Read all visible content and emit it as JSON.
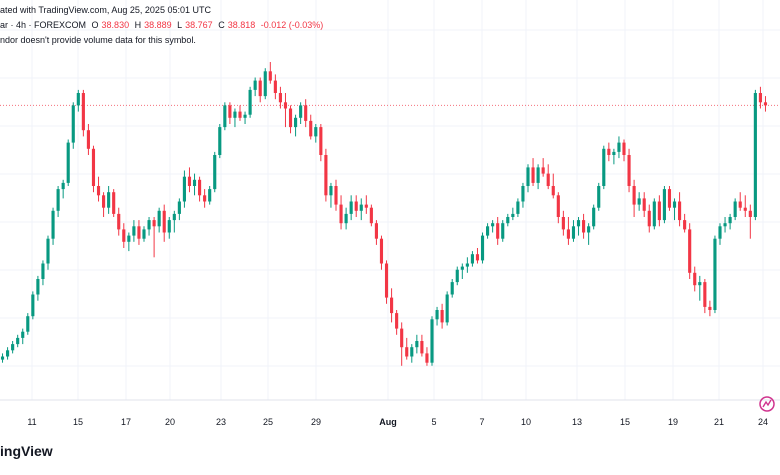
{
  "header": {
    "credit": "ated with TradingView.com, Aug 25, 2025 05:01 UTC",
    "symbol_line": "ar · 4h · FOREXCOM",
    "open_label": "O",
    "open": "38.830",
    "high_label": "H",
    "high": "38.889",
    "low_label": "L",
    "low": "38.767",
    "close_label": "C",
    "close": "38.818",
    "change": "-0.012 (-0.03%)"
  },
  "note": "ndor doesn't provide volume data for this symbol.",
  "footer_brand": "ingView",
  "colors": {
    "up": "#089981",
    "down": "#f23645",
    "grid": "#f0f3fa",
    "axis_text": "#131722",
    "price_line": "#f23645",
    "logo_accent": "#d0338e"
  },
  "chart_data": {
    "type": "candlestick",
    "timeframe": "4h",
    "x_ticks": [
      "11",
      "15",
      "17",
      "20",
      "23",
      "25",
      "29",
      "Aug",
      "5",
      "7",
      "10",
      "13",
      "15",
      "19",
      "21",
      "24"
    ],
    "y_axis_visible": false,
    "grid": true,
    "last_price_line": true,
    "candles_ohlc_relative": [
      [
        0.04,
        0.06,
        0.03,
        0.05
      ],
      [
        0.05,
        0.08,
        0.04,
        0.07
      ],
      [
        0.07,
        0.1,
        0.06,
        0.09
      ],
      [
        0.09,
        0.12,
        0.08,
        0.11
      ],
      [
        0.11,
        0.14,
        0.09,
        0.13
      ],
      [
        0.13,
        0.19,
        0.12,
        0.18
      ],
      [
        0.18,
        0.26,
        0.17,
        0.25
      ],
      [
        0.25,
        0.31,
        0.23,
        0.3
      ],
      [
        0.3,
        0.36,
        0.28,
        0.35
      ],
      [
        0.35,
        0.44,
        0.33,
        0.43
      ],
      [
        0.43,
        0.53,
        0.41,
        0.52
      ],
      [
        0.52,
        0.6,
        0.5,
        0.59
      ],
      [
        0.59,
        0.62,
        0.56,
        0.61
      ],
      [
        0.61,
        0.75,
        0.6,
        0.74
      ],
      [
        0.74,
        0.87,
        0.72,
        0.86
      ],
      [
        0.86,
        0.91,
        0.84,
        0.9
      ],
      [
        0.9,
        0.91,
        0.76,
        0.78
      ],
      [
        0.78,
        0.8,
        0.7,
        0.72
      ],
      [
        0.72,
        0.73,
        0.58,
        0.6
      ],
      [
        0.6,
        0.63,
        0.55,
        0.57
      ],
      [
        0.57,
        0.58,
        0.5,
        0.53
      ],
      [
        0.53,
        0.6,
        0.51,
        0.58
      ],
      [
        0.58,
        0.59,
        0.5,
        0.51
      ],
      [
        0.51,
        0.53,
        0.44,
        0.46
      ],
      [
        0.46,
        0.48,
        0.4,
        0.42
      ],
      [
        0.42,
        0.45,
        0.39,
        0.44
      ],
      [
        0.44,
        0.49,
        0.42,
        0.47
      ],
      [
        0.47,
        0.49,
        0.41,
        0.43
      ],
      [
        0.43,
        0.47,
        0.42,
        0.46
      ],
      [
        0.46,
        0.5,
        0.44,
        0.49
      ],
      [
        0.49,
        0.5,
        0.37,
        0.47
      ],
      [
        0.47,
        0.53,
        0.45,
        0.52
      ],
      [
        0.52,
        0.54,
        0.42,
        0.45
      ],
      [
        0.45,
        0.5,
        0.43,
        0.49
      ],
      [
        0.49,
        0.52,
        0.45,
        0.51
      ],
      [
        0.51,
        0.56,
        0.49,
        0.55
      ],
      [
        0.55,
        0.65,
        0.53,
        0.63
      ],
      [
        0.63,
        0.66,
        0.58,
        0.6
      ],
      [
        0.6,
        0.64,
        0.57,
        0.62
      ],
      [
        0.62,
        0.63,
        0.55,
        0.57
      ],
      [
        0.57,
        0.59,
        0.53,
        0.55
      ],
      [
        0.55,
        0.6,
        0.54,
        0.59
      ],
      [
        0.59,
        0.71,
        0.58,
        0.7
      ],
      [
        0.7,
        0.8,
        0.69,
        0.79
      ],
      [
        0.79,
        0.87,
        0.78,
        0.86
      ],
      [
        0.86,
        0.87,
        0.8,
        0.82
      ],
      [
        0.82,
        0.85,
        0.79,
        0.84
      ],
      [
        0.84,
        0.86,
        0.81,
        0.82
      ],
      [
        0.82,
        0.84,
        0.8,
        0.83
      ],
      [
        0.83,
        0.92,
        0.82,
        0.91
      ],
      [
        0.91,
        0.95,
        0.89,
        0.94
      ],
      [
        0.94,
        0.95,
        0.87,
        0.89
      ],
      [
        0.89,
        0.98,
        0.88,
        0.97
      ],
      [
        0.97,
        1.0,
        0.93,
        0.94
      ],
      [
        0.94,
        0.96,
        0.88,
        0.9
      ],
      [
        0.9,
        0.92,
        0.85,
        0.87
      ],
      [
        0.87,
        0.9,
        0.79,
        0.85
      ],
      [
        0.85,
        0.86,
        0.77,
        0.79
      ],
      [
        0.79,
        0.83,
        0.76,
        0.82
      ],
      [
        0.82,
        0.87,
        0.8,
        0.86
      ],
      [
        0.86,
        0.88,
        0.79,
        0.81
      ],
      [
        0.81,
        0.83,
        0.75,
        0.76
      ],
      [
        0.76,
        0.8,
        0.74,
        0.79
      ],
      [
        0.79,
        0.8,
        0.68,
        0.7
      ],
      [
        0.7,
        0.72,
        0.55,
        0.57
      ],
      [
        0.57,
        0.61,
        0.53,
        0.6
      ],
      [
        0.6,
        0.62,
        0.52,
        0.54
      ],
      [
        0.54,
        0.57,
        0.46,
        0.48
      ],
      [
        0.48,
        0.53,
        0.46,
        0.51
      ],
      [
        0.51,
        0.57,
        0.49,
        0.55
      ],
      [
        0.55,
        0.57,
        0.5,
        0.52
      ],
      [
        0.52,
        0.56,
        0.49,
        0.54
      ],
      [
        0.54,
        0.57,
        0.51,
        0.53
      ],
      [
        0.53,
        0.54,
        0.47,
        0.48
      ],
      [
        0.48,
        0.49,
        0.41,
        0.43
      ],
      [
        0.43,
        0.44,
        0.33,
        0.35
      ],
      [
        0.35,
        0.36,
        0.22,
        0.24
      ],
      [
        0.24,
        0.27,
        0.16,
        0.19
      ],
      [
        0.19,
        0.2,
        0.12,
        0.14
      ],
      [
        0.14,
        0.16,
        0.02,
        0.08
      ],
      [
        0.08,
        0.11,
        0.04,
        0.05
      ],
      [
        0.05,
        0.09,
        0.03,
        0.08
      ],
      [
        0.08,
        0.12,
        0.06,
        0.1
      ],
      [
        0.1,
        0.12,
        0.05,
        0.06
      ],
      [
        0.06,
        0.08,
        0.02,
        0.03
      ],
      [
        0.03,
        0.18,
        0.02,
        0.17
      ],
      [
        0.17,
        0.21,
        0.15,
        0.2
      ],
      [
        0.2,
        0.22,
        0.14,
        0.16
      ],
      [
        0.16,
        0.26,
        0.15,
        0.25
      ],
      [
        0.25,
        0.3,
        0.24,
        0.29
      ],
      [
        0.29,
        0.34,
        0.28,
        0.33
      ],
      [
        0.33,
        0.35,
        0.3,
        0.34
      ],
      [
        0.34,
        0.37,
        0.32,
        0.35
      ],
      [
        0.35,
        0.39,
        0.34,
        0.38
      ],
      [
        0.38,
        0.4,
        0.35,
        0.36
      ],
      [
        0.36,
        0.45,
        0.35,
        0.44
      ],
      [
        0.44,
        0.48,
        0.43,
        0.47
      ],
      [
        0.47,
        0.49,
        0.45,
        0.48
      ],
      [
        0.48,
        0.5,
        0.41,
        0.43
      ],
      [
        0.43,
        0.49,
        0.42,
        0.48
      ],
      [
        0.48,
        0.51,
        0.47,
        0.5
      ],
      [
        0.5,
        0.53,
        0.49,
        0.51
      ],
      [
        0.51,
        0.56,
        0.5,
        0.55
      ],
      [
        0.55,
        0.61,
        0.53,
        0.6
      ],
      [
        0.6,
        0.67,
        0.58,
        0.66
      ],
      [
        0.66,
        0.69,
        0.6,
        0.61
      ],
      [
        0.61,
        0.67,
        0.59,
        0.66
      ],
      [
        0.66,
        0.69,
        0.63,
        0.64
      ],
      [
        0.64,
        0.67,
        0.59,
        0.6
      ],
      [
        0.6,
        0.64,
        0.56,
        0.57
      ],
      [
        0.57,
        0.58,
        0.48,
        0.5
      ],
      [
        0.5,
        0.52,
        0.44,
        0.46
      ],
      [
        0.46,
        0.5,
        0.41,
        0.43
      ],
      [
        0.43,
        0.49,
        0.42,
        0.47
      ],
      [
        0.47,
        0.5,
        0.44,
        0.49
      ],
      [
        0.49,
        0.51,
        0.43,
        0.45
      ],
      [
        0.45,
        0.48,
        0.41,
        0.47
      ],
      [
        0.47,
        0.54,
        0.46,
        0.53
      ],
      [
        0.53,
        0.61,
        0.52,
        0.6
      ],
      [
        0.6,
        0.73,
        0.59,
        0.72
      ],
      [
        0.72,
        0.74,
        0.68,
        0.7
      ],
      [
        0.7,
        0.72,
        0.67,
        0.71
      ],
      [
        0.71,
        0.76,
        0.69,
        0.74
      ],
      [
        0.74,
        0.75,
        0.68,
        0.7
      ],
      [
        0.7,
        0.72,
        0.58,
        0.6
      ],
      [
        0.6,
        0.62,
        0.5,
        0.54
      ],
      [
        0.54,
        0.58,
        0.52,
        0.56
      ],
      [
        0.56,
        0.58,
        0.5,
        0.52
      ],
      [
        0.52,
        0.54,
        0.45,
        0.47
      ],
      [
        0.47,
        0.56,
        0.46,
        0.55
      ],
      [
        0.55,
        0.57,
        0.47,
        0.49
      ],
      [
        0.49,
        0.6,
        0.48,
        0.59
      ],
      [
        0.59,
        0.6,
        0.52,
        0.53
      ],
      [
        0.53,
        0.56,
        0.49,
        0.55
      ],
      [
        0.55,
        0.58,
        0.47,
        0.49
      ],
      [
        0.49,
        0.51,
        0.45,
        0.46
      ],
      [
        0.46,
        0.48,
        0.3,
        0.32
      ],
      [
        0.32,
        0.34,
        0.26,
        0.28
      ],
      [
        0.28,
        0.31,
        0.23,
        0.29
      ],
      [
        0.29,
        0.3,
        0.19,
        0.21
      ],
      [
        0.21,
        0.23,
        0.18,
        0.2
      ],
      [
        0.2,
        0.44,
        0.19,
        0.43
      ],
      [
        0.43,
        0.48,
        0.41,
        0.47
      ],
      [
        0.47,
        0.5,
        0.45,
        0.48
      ],
      [
        0.48,
        0.51,
        0.46,
        0.5
      ],
      [
        0.5,
        0.56,
        0.49,
        0.55
      ],
      [
        0.55,
        0.58,
        0.52,
        0.53
      ],
      [
        0.53,
        0.57,
        0.5,
        0.52
      ],
      [
        0.52,
        0.54,
        0.43,
        0.5
      ],
      [
        0.5,
        0.91,
        0.49,
        0.9
      ],
      [
        0.9,
        0.92,
        0.85,
        0.87
      ],
      [
        0.87,
        0.89,
        0.84,
        0.86
      ]
    ]
  }
}
